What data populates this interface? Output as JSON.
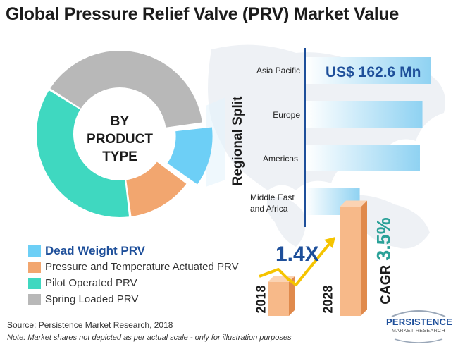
{
  "title": "Global Pressure Relief Valve (PRV) Market Value",
  "chart_data": [
    {
      "type": "pie",
      "center_text": [
        "BY",
        "PRODUCT",
        "TYPE"
      ],
      "legend_placement": "bottom-left",
      "slices": [
        {
          "label": "Dead Weight PRV",
          "value": 12,
          "color": "#6dcff6"
        },
        {
          "label": "Pressure and Temperature Actuated PRV",
          "value": 13,
          "color": "#f2a66f"
        },
        {
          "label": "Pilot Operated PRV",
          "value": 36,
          "color": "#3fd8c0"
        },
        {
          "label": "Spring Loaded PRV",
          "value": 39,
          "color": "#b8b8b8"
        }
      ]
    },
    {
      "type": "bar",
      "orientation": "horizontal",
      "axis_title": "Regional Split",
      "categories": [
        "Asia Pacific",
        "Europe",
        "Americas",
        "Middle East and Africa"
      ],
      "values": [
        100,
        93,
        91,
        43
      ],
      "value_label": "US$ 162.6 Mn",
      "color": "#8fd2f2"
    },
    {
      "type": "bar",
      "categories": [
        "2018",
        "2028"
      ],
      "values": [
        1,
        1.4
      ],
      "growth_label": "1.4X",
      "cagr_word": "CAGR",
      "cagr_value": "3.5%",
      "color": "#f2a66f"
    }
  ],
  "source": "Source: Persistence Market Research, 2018",
  "note": "Note: Market shares not depicted as per actual scale - only for illustration purposes",
  "logo": {
    "main": "PERSISTENCE",
    "sub": "MARKET RESEARCH"
  },
  "colors": {
    "title": "#1b1b1b",
    "accent_blue": "#1e4f9a",
    "teal": "#2aa198",
    "arrow": "#f5c400"
  }
}
